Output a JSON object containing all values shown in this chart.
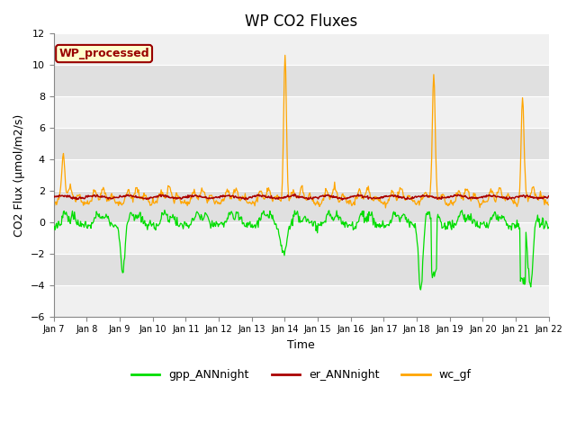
{
  "title": "WP CO2 Fluxes",
  "xlabel": "Time",
  "ylabel": "CO2 Flux (µmol/m2/s)",
  "ylim": [
    -6,
    12
  ],
  "yticks": [
    -6,
    -4,
    -2,
    0,
    2,
    4,
    6,
    8,
    10,
    12
  ],
  "xtick_labels": [
    "Jan 7",
    "Jan 8",
    "Jan 9",
    "Jan 10",
    "Jan 11",
    "Jan 12",
    "Jan 13",
    "Jan 14",
    "Jan 15",
    "Jan 16",
    "Jan 17",
    "Jan 18",
    "Jan 19",
    "Jan 20",
    "Jan 21",
    "Jan 22"
  ],
  "legend_entries": [
    "gpp_ANNnight",
    "er_ANNnight",
    "wc_gf"
  ],
  "line_colors": [
    "#00dd00",
    "#aa0000",
    "#ffa500"
  ],
  "annotation_text": "WP_processed",
  "annotation_bg": "#ffffcc",
  "annotation_border": "#990000",
  "band_colors": [
    "#f0f0f0",
    "#e0e0e0"
  ],
  "title_fontsize": 12,
  "axis_label_fontsize": 9,
  "tick_fontsize": 8,
  "n_days": 15,
  "n_points": 720
}
